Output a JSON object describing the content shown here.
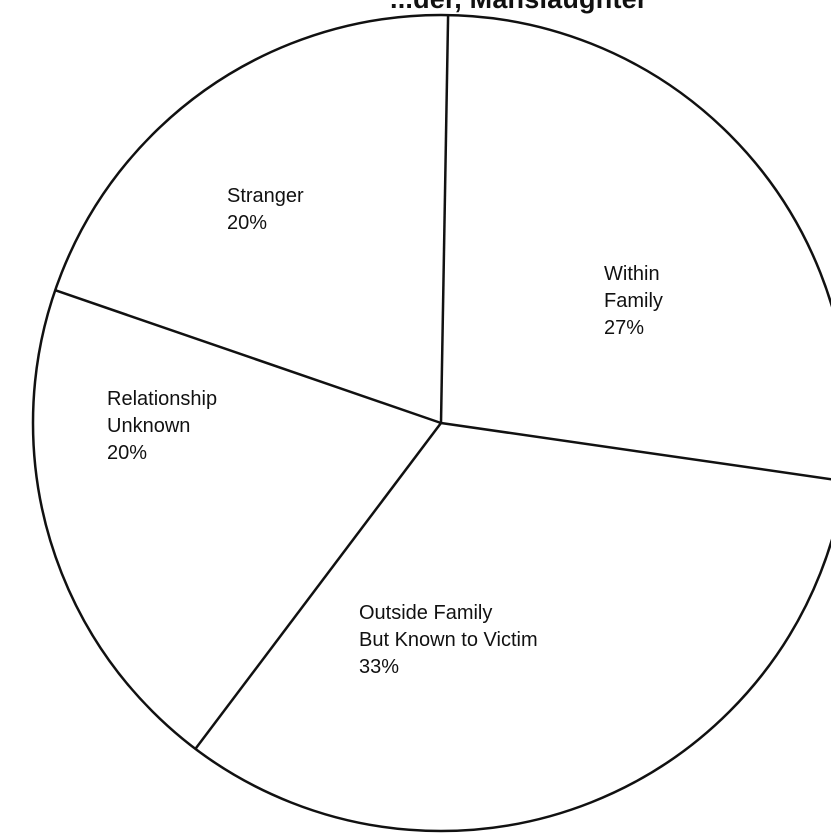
{
  "chart_data": {
    "type": "pie",
    "title": "...der, Manslaughter",
    "start_angle_deg": 1,
    "direction": "clockwise",
    "slices": [
      {
        "label_lines": [
          "Within",
          "Family"
        ],
        "value": 27,
        "value_label": "27%"
      },
      {
        "label_lines": [
          "Outside Family",
          "But Known to Victim"
        ],
        "value": 33,
        "value_label": "33%"
      },
      {
        "label_lines": [
          "Relationship",
          "Unknown"
        ],
        "value": 20,
        "value_label": "20%"
      },
      {
        "label_lines": [
          "Stranger"
        ],
        "value": 20,
        "value_label": "20%"
      }
    ]
  },
  "colors": {
    "line": "#111111",
    "fill": "#ffffff"
  }
}
